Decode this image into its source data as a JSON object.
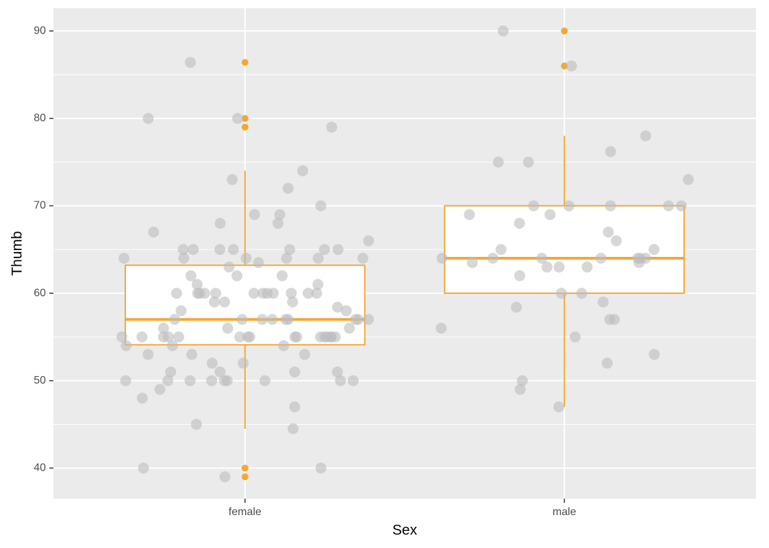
{
  "chart_data": {
    "type": "boxplot",
    "x_label": "Sex",
    "y_label": "Thumb",
    "categories": [
      "female",
      "male"
    ],
    "ylim": [
      36.5,
      92.6
    ],
    "yticks": [
      40,
      50,
      60,
      70,
      80,
      90
    ],
    "grid": true,
    "box_color": "#f4a736",
    "point_color": "#bdbdbd",
    "boxes": [
      {
        "whislo": 44.5,
        "q1": 54.1,
        "med": 57,
        "q3": 63.2,
        "whishi": 74,
        "outliers": [
          86.4,
          80,
          79,
          40,
          39
        ]
      },
      {
        "whislo": 47,
        "q1": 60,
        "med": 64,
        "q3": 70,
        "whishi": 78,
        "outliers": [
          90,
          86
        ]
      }
    ],
    "points": [
      [
        54,
        45,
        68,
        66,
        65,
        57,
        56,
        50,
        55,
        55,
        53,
        60,
        64,
        55,
        50,
        55,
        54,
        60,
        58.4,
        55,
        80,
        80,
        74,
        50,
        50,
        52,
        56,
        51,
        39,
        50,
        55,
        55,
        49,
        60,
        59,
        64,
        64,
        62,
        60,
        60,
        63,
        65,
        65,
        61,
        60,
        55,
        55,
        53,
        60,
        40,
        59,
        51,
        47,
        64,
        60,
        68,
        50,
        57,
        56,
        54,
        65,
        67,
        64,
        55,
        53,
        86.4,
        59,
        57,
        55,
        55,
        69,
        79,
        60,
        51,
        50,
        63.5,
        73,
        55,
        57,
        65,
        57,
        57,
        51,
        55,
        58,
        57,
        64,
        69,
        62,
        65,
        40,
        60,
        62,
        61,
        57,
        52,
        50,
        57,
        72,
        55,
        60,
        44.5,
        55,
        50,
        48,
        58,
        65,
        70,
        60
      ],
      [
        53,
        75,
        64,
        64,
        63,
        64,
        49,
        66,
        78,
        64,
        73,
        63,
        65,
        58.4,
        56,
        90,
        86,
        64,
        76.2,
        52,
        60,
        59,
        70,
        57,
        63.5,
        60,
        64,
        67,
        69,
        62,
        70,
        75,
        70,
        65,
        50,
        69,
        55,
        70,
        57,
        70,
        64,
        63.5,
        68,
        47,
        63
      ]
    ]
  }
}
